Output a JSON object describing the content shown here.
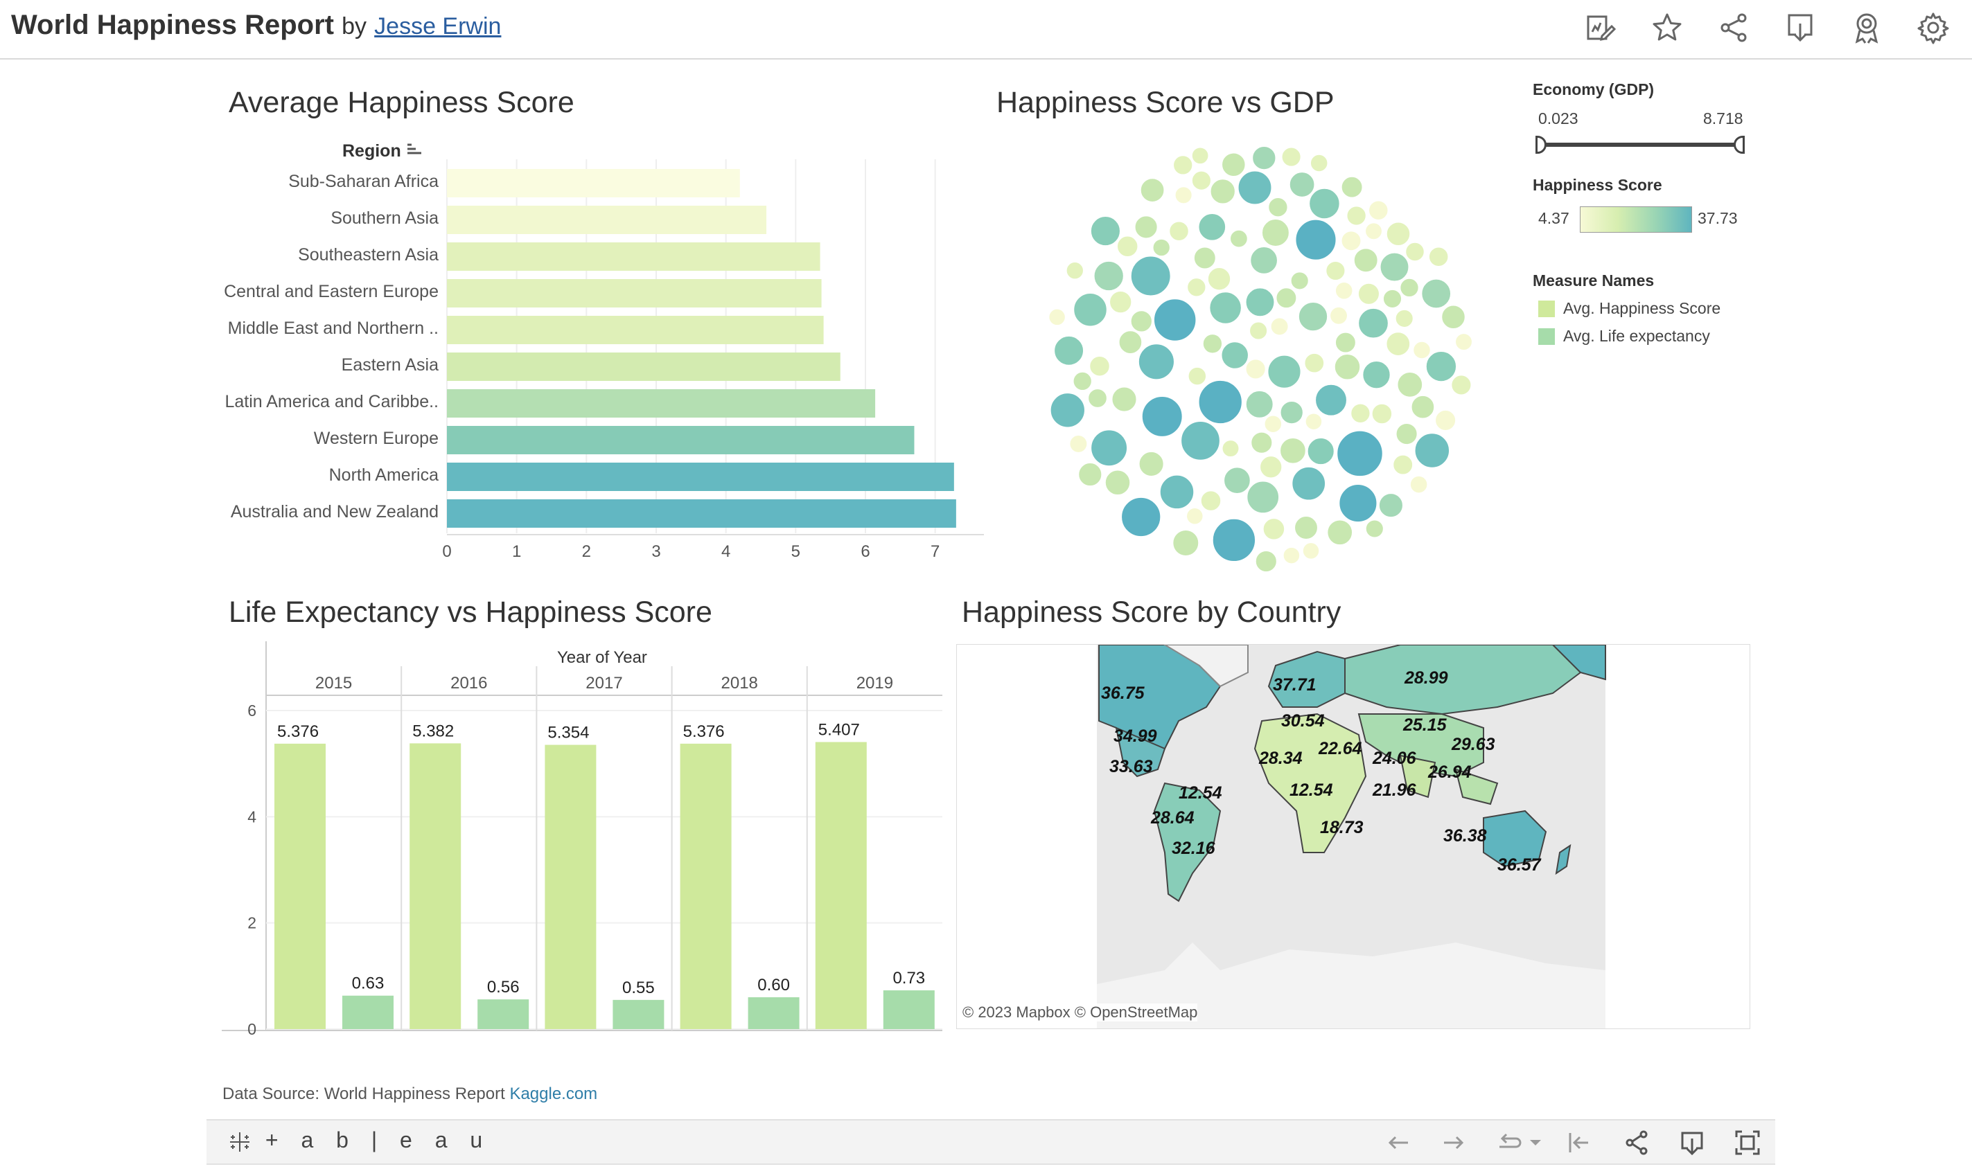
{
  "header": {
    "title": "World Happiness Report",
    "by": "by",
    "author": "Jesse Erwin",
    "icons": [
      "edit-icon",
      "favorite-star-icon",
      "share-icon",
      "download-icon",
      "badge-icon",
      "settings-gear-icon"
    ]
  },
  "bar_chart": {
    "title": "Average Happiness Score",
    "region_header": "Region",
    "x_ticks": [
      "0",
      "1",
      "2",
      "3",
      "4",
      "5",
      "6",
      "7"
    ]
  },
  "bubble_chart": {
    "title": "Happiness Score vs GDP"
  },
  "life_chart": {
    "title": "Life Expectancy vs Happiness Score",
    "column_header": "Year of Year",
    "y_ticks": [
      "6",
      "4",
      "2",
      "0"
    ]
  },
  "map": {
    "title": "Happiness Score by Country",
    "attribution": "© 2023 Mapbox  © OpenStreetMap",
    "labels": [
      "36.75",
      "37.71",
      "28.99",
      "30.54",
      "25.15",
      "34.99",
      "28.34",
      "22.64",
      "29.63",
      "33.63",
      "24.06",
      "26.94",
      "12.54",
      "12.54",
      "21.96",
      "28.64",
      "18.73",
      "36.38",
      "32.16",
      "36.57"
    ]
  },
  "legends": {
    "gdp": {
      "title": "Economy (GDP)",
      "min": "0.023",
      "max": "8.718",
      "range_fraction": [
        0.0,
        1.0
      ]
    },
    "happiness": {
      "title": "Happiness Score",
      "min": "4.37",
      "max": "37.73",
      "color_low": "#f7f9d6",
      "color_high": "#5fb5bf"
    },
    "measures": {
      "title": "Measure Names",
      "items": [
        {
          "label": "Avg. Happiness Score",
          "color": "#cfe99b"
        },
        {
          "label": "Avg. Life expectancy",
          "color": "#a6dcaa"
        }
      ]
    }
  },
  "footer": {
    "source_text": "Data Source: World Happiness Report",
    "source_link": "Kaggle.com",
    "tableau_logo": "+ a b | e a u",
    "toolbar_icons": [
      "undo-icon",
      "redo-icon",
      "revert-icon",
      "revert-dropdown-icon",
      "reset-icon",
      "share-icon",
      "download-icon",
      "fullscreen-icon"
    ]
  },
  "chart_data": [
    {
      "type": "bar",
      "title": "Average Happiness Score",
      "ylabel": "Region",
      "categories": [
        "Sub-Saharan Africa",
        "Southern Asia",
        "Southeastern Asia",
        "Central and Eastern Europe",
        "Middle East and Northern ..",
        "Eastern Asia",
        "Latin America and Caribbe..",
        "Western Europe",
        "North America",
        "Australia and New Zealand"
      ],
      "values": [
        4.2,
        4.58,
        5.35,
        5.37,
        5.4,
        5.64,
        6.14,
        6.7,
        7.27,
        7.3
      ],
      "colors": [
        "#fafce0",
        "#f2f8d0",
        "#e2f1bb",
        "#e1f1bb",
        "#dff0b8",
        "#d3ebb0",
        "#b4dfb2",
        "#86cbb6",
        "#65b9c1",
        "#62b7c2"
      ],
      "xlim": [
        0,
        7.5
      ],
      "orientation": "horizontal"
    },
    {
      "type": "bar",
      "title": "Life Expectancy vs Happiness Score",
      "xlabel": "Year of Year",
      "categories": [
        "2015",
        "2016",
        "2017",
        "2018",
        "2019"
      ],
      "series": [
        {
          "name": "Avg. Happiness Score",
          "values": [
            5.376,
            5.382,
            5.354,
            5.376,
            5.407
          ],
          "labels": [
            "5.376",
            "5.382",
            "5.354",
            "5.376",
            "5.407"
          ]
        },
        {
          "name": "Avg. Life expectancy",
          "values": [
            0.63,
            0.56,
            0.55,
            0.6,
            0.73
          ],
          "labels": [
            "0.63",
            "0.56",
            "0.55",
            "0.60",
            "0.73"
          ]
        }
      ],
      "ylim": [
        0,
        6
      ]
    }
  ]
}
